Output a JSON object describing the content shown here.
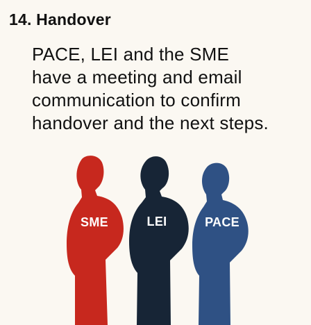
{
  "heading": {
    "text": "14. Handover"
  },
  "description": {
    "lines": [
      "PACE, LEI and the SME",
      "have a meeting and email",
      "communication to confirm",
      "handover and the next steps."
    ]
  },
  "participants": [
    {
      "label": "SME",
      "color": "#c7281e"
    },
    {
      "label": "LEI",
      "color": "#172536"
    },
    {
      "label": "PACE",
      "color": "#2f5184"
    }
  ]
}
